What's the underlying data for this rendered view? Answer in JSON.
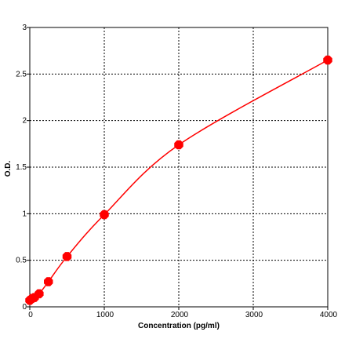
{
  "chart_data": {
    "type": "line",
    "title": "",
    "xlabel": "Concentration (pg/ml)",
    "ylabel": "O.D.",
    "xlim": [
      0,
      4000
    ],
    "ylim": [
      0,
      3
    ],
    "x_ticks": [
      0,
      1000,
      2000,
      3000,
      4000
    ],
    "y_ticks": [
      0,
      0.5,
      1,
      1.5,
      2,
      2.5,
      3
    ],
    "x_tick_labels": [
      "0",
      "1000",
      "2000",
      "3000",
      "4000"
    ],
    "y_tick_labels": [
      "0",
      "0.5",
      "1",
      "1.5",
      "2",
      "2.5",
      "3"
    ],
    "grid": true,
    "grid_style": "dotted",
    "legend": "none",
    "series": [
      {
        "style": "line-with-markers",
        "color": "#ff0000",
        "marker": "filled-octagon",
        "x": [
          0,
          31.25,
          62.5,
          125,
          250,
          500,
          1000,
          2000,
          4000
        ],
        "y": [
          0.07,
          0.09,
          0.1,
          0.14,
          0.27,
          0.54,
          0.99,
          1.74,
          2.65
        ]
      }
    ]
  }
}
